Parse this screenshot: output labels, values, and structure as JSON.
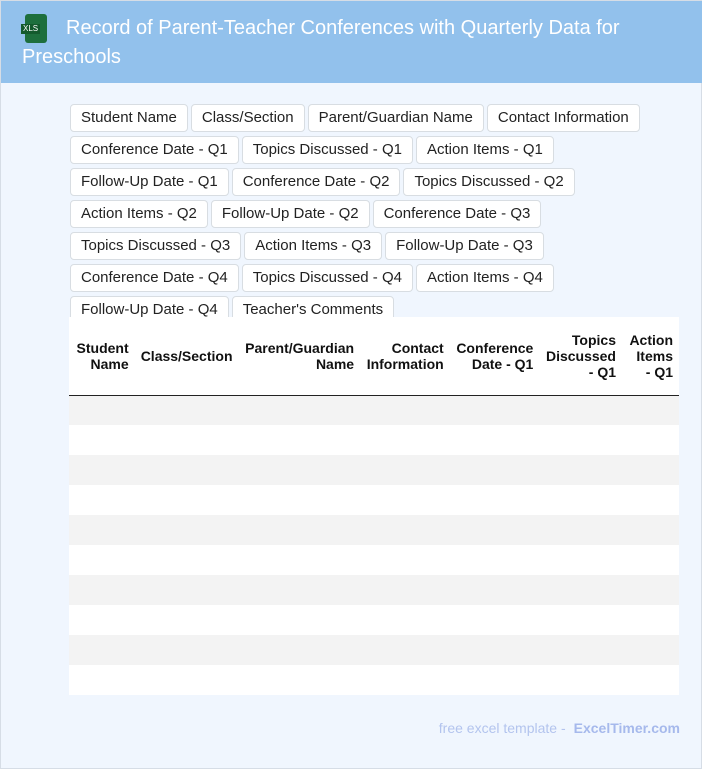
{
  "header": {
    "title": "Record of Parent-Teacher Conferences with Quarterly Data for Preschools",
    "icon": "xls-file-icon",
    "icon_label": "XLS"
  },
  "column_toggles": [
    "Student Name",
    "Class/Section",
    "Parent/Guardian Name",
    "Contact Information",
    "Conference Date - Q1",
    "Topics Discussed - Q1",
    "Action Items - Q1",
    "Follow-Up Date - Q1",
    "Conference Date - Q2",
    "Topics Discussed - Q2",
    "Action Items - Q2",
    "Follow-Up Date - Q2",
    "Conference Date - Q3",
    "Topics Discussed - Q3",
    "Action Items - Q3",
    "Follow-Up Date - Q3",
    "Conference Date - Q4",
    "Topics Discussed - Q4",
    "Action Items - Q4",
    "Follow-Up Date - Q4",
    "Teacher's Comments"
  ],
  "table": {
    "headers": [
      "Student Name",
      "Class/Section",
      "Parent/Guardian Name",
      "Contact Information",
      "Conference Date - Q1",
      "Topics Discussed - Q1",
      "Action Items - Q1"
    ],
    "row_count": 10
  },
  "footer": {
    "text": "free excel template -",
    "brand": "ExcelTimer.com"
  }
}
